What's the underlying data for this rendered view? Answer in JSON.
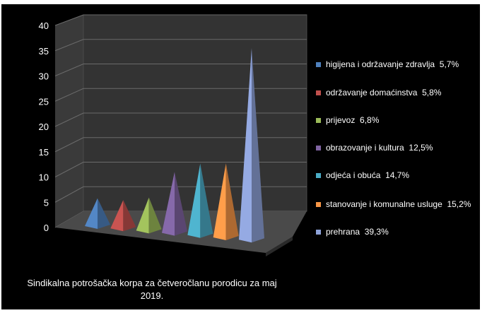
{
  "chart_data": {
    "type": "bar",
    "variant": "3d-pyramid",
    "ylim": [
      0,
      40
    ],
    "yticks": [
      0,
      5,
      10,
      15,
      20,
      25,
      30,
      35,
      40
    ],
    "grid": true,
    "legend_position": "right",
    "caption": "Sindikalna potrošačka korpa za četveročlanu porodicu za maj 2019.",
    "series": [
      {
        "name": "higijena i održavanje zdravlja",
        "pct_label": "5,7%",
        "value": 5.7,
        "color": "#4f81bd"
      },
      {
        "name": "održavanje domaćinstva",
        "pct_label": "5,8%",
        "value": 5.8,
        "color": "#c0504d"
      },
      {
        "name": "prijevoz",
        "pct_label": "6,8%",
        "value": 6.8,
        "color": "#9bbb59"
      },
      {
        "name": "obrazovanje i kultura",
        "pct_label": "12,5%",
        "value": 12.5,
        "color": "#8064a2"
      },
      {
        "name": "odjeća i obuća",
        "pct_label": "14,7%",
        "value": 14.7,
        "color": "#4bacc6"
      },
      {
        "name": "stanovanje i komunalne usluge",
        "pct_label": "15,2%",
        "value": 15.2,
        "color": "#f79646"
      },
      {
        "name": "prehrana",
        "pct_label": "39,3%",
        "value": 39.3,
        "color": "#8ea2d8"
      }
    ]
  }
}
